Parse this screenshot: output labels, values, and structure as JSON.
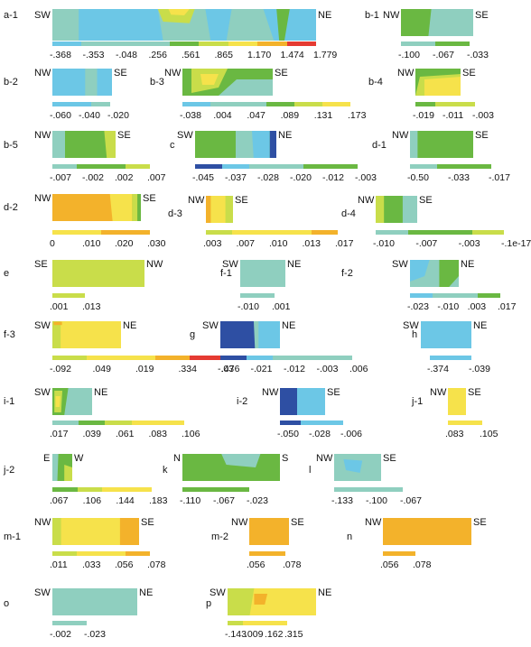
{
  "colors": {
    "lightblue": "#6cc7e6",
    "teal": "#8fcfbf",
    "green": "#6ab842",
    "lime": "#c9dd4a",
    "yellow": "#f6e24b",
    "orange": "#f3b22b",
    "red": "#e53b32",
    "navy": "#2e4fa3"
  },
  "panels": {
    "a1": {
      "label": "a-1",
      "left": "SW",
      "right": "NE",
      "ticks": [
        "-.368",
        "-.353",
        "-.048",
        ".256",
        ".561",
        ".865",
        "1.170",
        "1.474",
        "1.779"
      ]
    },
    "b1": {
      "label": "b-1",
      "left": "NW",
      "right": "SE",
      "ticks": [
        "-.100",
        "-.067",
        "-.033"
      ]
    },
    "b2": {
      "label": "b-2",
      "left": "NW",
      "right": "SE",
      "ticks": [
        "-.060",
        "-.040",
        "-.020"
      ]
    },
    "b3": {
      "label": "b-3",
      "left": "NW",
      "right": "SE",
      "ticks": [
        "-.038",
        ".004",
        ".047",
        ".089",
        ".131",
        ".173"
      ]
    },
    "b4": {
      "label": "b-4",
      "left": "NW",
      "right": "SE",
      "ticks": [
        "-.019",
        "-.011",
        "-.003"
      ]
    },
    "b5": {
      "label": "b-5",
      "left": "NW",
      "right": "SE",
      "ticks": [
        "-.007",
        "-.002",
        ".002",
        ".007"
      ]
    },
    "c": {
      "label": "c",
      "left": "SW",
      "right": "NE",
      "ticks": [
        "-.045",
        "-.037",
        "-.028",
        "-.020",
        "-.012",
        "-.003"
      ]
    },
    "d1": {
      "label": "d-1",
      "left": "NW",
      "right": "SE",
      "ticks": [
        "-0.50",
        "-.033",
        "-.017"
      ]
    },
    "d2": {
      "label": "d-2",
      "left": "NW",
      "right": "SE",
      "ticks": [
        "0",
        ".010",
        ".020",
        ".030"
      ]
    },
    "d3": {
      "label": "d-3",
      "left": "NW",
      "right": "SE",
      "ticks": [
        ".003",
        ".007",
        ".010",
        ".013",
        ".017"
      ]
    },
    "d4": {
      "label": "d-4",
      "left": "NW",
      "right": "SE",
      "ticks": [
        "-.010",
        "-.007",
        "-.003",
        "-.1e-17"
      ]
    },
    "e": {
      "label": "e",
      "left": "SE",
      "right": "NW",
      "ticks": [
        ".001",
        ".013"
      ]
    },
    "f1": {
      "label": "f-1",
      "left": "SW",
      "right": "NE",
      "ticks": [
        "-.010",
        ".001"
      ]
    },
    "f2": {
      "label": "f-2",
      "left": "SW",
      "right": "NE",
      "ticks": [
        "-.023",
        "-.010",
        ".003",
        ".017"
      ]
    },
    "f3": {
      "label": "f-3",
      "left": "SW",
      "right": "NE",
      "ticks": [
        "-.092",
        ".049",
        ".019",
        ".334",
        ".476"
      ]
    },
    "g": {
      "label": "g",
      "left": "SW",
      "right": "NE",
      "ticks": [
        "-.03",
        "-.021",
        "-.012",
        "-.003",
        ".006"
      ]
    },
    "h": {
      "label": "h",
      "left": "SW",
      "right": "NE",
      "ticks": [
        "-.374",
        "-.039"
      ]
    },
    "i1": {
      "label": "i-1",
      "left": "SW",
      "right": "NE",
      "ticks": [
        ".017",
        ".039",
        ".061",
        ".083",
        ".106"
      ]
    },
    "i2": {
      "label": "i-2",
      "left": "NW",
      "right": "SE",
      "ticks": [
        "-.050",
        "-.028",
        "-.006"
      ]
    },
    "j1": {
      "label": "j-1",
      "left": "NW",
      "right": "SE",
      "ticks": [
        ".083",
        ".105"
      ]
    },
    "j2": {
      "label": "j-2",
      "left": "E",
      "right": "W",
      "ticks": [
        ".067",
        ".106",
        ".144",
        ".183"
      ]
    },
    "k": {
      "label": "k",
      "left": "N",
      "right": "S",
      "ticks": [
        "-.110",
        "-.067",
        "-.023"
      ]
    },
    "l": {
      "label": "l",
      "left": "NW",
      "right": "SE",
      "ticks": [
        "-.133",
        "-.100",
        "-.067"
      ]
    },
    "m1": {
      "label": "m-1",
      "left": "NW",
      "right": "SE",
      "ticks": [
        ".011",
        ".033",
        ".056",
        ".078"
      ]
    },
    "m2": {
      "label": "m-2",
      "left": "NW",
      "right": "SE",
      "ticks": [
        ".056",
        ".078"
      ]
    },
    "n": {
      "label": "n",
      "left": "NW",
      "right": "SE",
      "ticks": [
        ".056",
        ".078"
      ]
    },
    "o": {
      "label": "o",
      "left": "SW",
      "right": "NE",
      "ticks": [
        "-.002",
        "-.023"
      ]
    },
    "p": {
      "label": "p",
      "left": "SW",
      "right": "NE",
      "ticks": [
        "-.143",
        ".009",
        ".162",
        ".315"
      ]
    }
  }
}
